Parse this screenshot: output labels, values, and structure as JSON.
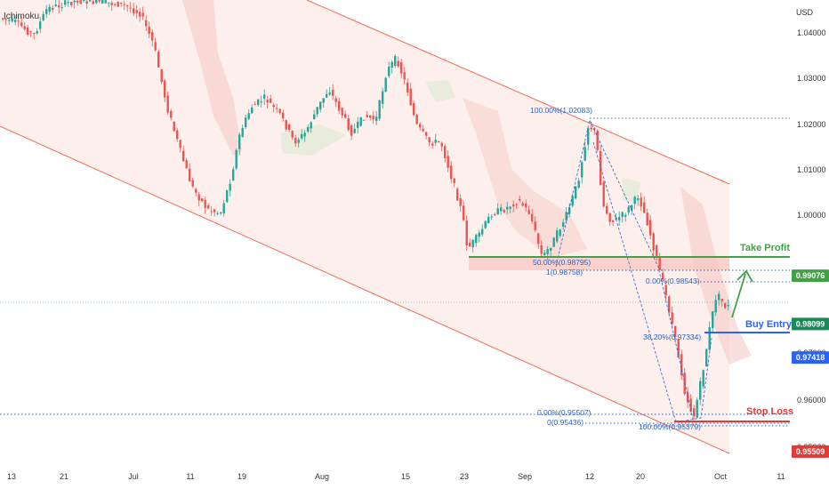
{
  "header": {
    "indicator": "Ichimoku",
    "currency": "USD"
  },
  "chart_data": {
    "type": "candlestick",
    "y_ticks": [
      "1.04000",
      "1.03000",
      "1.02000",
      "1.01000",
      "1.00000",
      "0.97000",
      "0.96000",
      "0.95000"
    ],
    "x_ticks": [
      "13",
      "21",
      "Jul",
      "11",
      "19",
      "Aug",
      "15",
      "23",
      "Sep",
      "12",
      "20",
      "Oct",
      "11"
    ],
    "ylim": [
      0.9475,
      1.0467
    ],
    "price_tags": [
      {
        "name": "take-profit-tag",
        "value": "0.99076",
        "color": "#43a047"
      },
      {
        "name": "current-price-tag",
        "value": "0.98099",
        "color": "#1b8a5a"
      },
      {
        "name": "buy-entry-tag",
        "value": "0.97418",
        "color": "#2962ff"
      },
      {
        "name": "stop-loss-tag",
        "value": "0.95509",
        "color": "#e53935"
      }
    ],
    "annotations": {
      "take_profit": "Take Profit",
      "buy_entry": "Buy Entry",
      "stop_loss": "Stop Loss"
    },
    "fib_labels": {
      "high": "100.00%(1.02083)",
      "f50": "50.00%(0.98795)",
      "f1": "1(0.98758)",
      "f0a": "0.00%(0.98543)",
      "f382": "38.20%(0.97334)",
      "f0b": "0.00%(0.95507)",
      "f0c": "0(0.95436)",
      "f100b": "100.00%(0.95379)"
    },
    "levels": {
      "take_profit": 0.99076,
      "current": 0.98099,
      "buy_entry": 0.97418,
      "stop_loss": 0.95509,
      "fib_high": 1.02083,
      "fib_1": 0.98758,
      "fib_0a": 0.98543,
      "fib_0b": 0.95507,
      "fib_0c": 0.95436
    },
    "colors": {
      "up": "#26a69a",
      "down": "#ef5350",
      "channel": "#f26b5b",
      "tp": "#43a047",
      "entry": "#2962ff",
      "sl": "#e53935",
      "fib": "#2a62c9"
    }
  }
}
